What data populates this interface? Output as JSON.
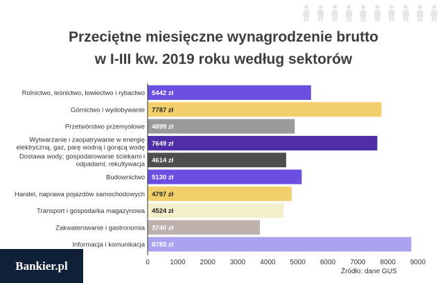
{
  "chart_data": {
    "type": "bar",
    "orientation": "horizontal",
    "title_line1": "Przeciętne miesięczne wynagrodzenie brutto",
    "title_line2": "w I-III kw. 2019 roku według sektorów",
    "categories": [
      [
        "Rolnictwo, leśnictwo, łowiectwo i rybactwo"
      ],
      [
        "Górnictwo i wydobywanie"
      ],
      [
        "Przetwórstwo przemysłowe"
      ],
      [
        "Wytwarzanie i zaopatrywanie w energię",
        "elektryczną, gaz, parę wodną i gorącą wodę"
      ],
      [
        "Dostawa wody; gospodarowanie ściekami i",
        "odpadami; rekultywacja"
      ],
      [
        "Budownictwo"
      ],
      [
        "Handel, naprawa pojazdów samochodowych"
      ],
      [
        "Transport i gospodarka magazynowa"
      ],
      [
        "Zakwaterowanie i gastronomia"
      ],
      [
        "Informacja i komunikacja"
      ]
    ],
    "values": [
      5442,
      7787,
      4899,
      7649,
      4614,
      5130,
      4797,
      4524,
      3740,
      8783
    ],
    "value_labels": [
      "5442 zł",
      "7787 zł",
      "4899 zł",
      "7649 zł",
      "4614 zł",
      "5130 zł",
      "4797 zł",
      "4524 zł",
      "3740 zł",
      "8783 zł"
    ],
    "colors": [
      "#6b4fe0",
      "#f2cf6b",
      "#9a9a9a",
      "#4f2ea8",
      "#4d4d4d",
      "#6b4fe0",
      "#f2cf6b",
      "#f3efcb",
      "#bdb0ad",
      "#aaa4f0"
    ],
    "label_colors": [
      "#ffffff",
      "#222222",
      "#ffffff",
      "#ffffff",
      "#ffffff",
      "#ffffff",
      "#222222",
      "#222222",
      "#ffffff",
      "#ffffff"
    ],
    "x_ticks": [
      0,
      1000,
      2000,
      3000,
      4000,
      5000,
      6000,
      7000,
      8000,
      9000
    ],
    "xlim": [
      0,
      9000
    ],
    "grid": false,
    "legend": "none"
  },
  "source": "Źródło: dane GUS",
  "logo_text": "Bankier.pl",
  "decoration": {
    "people_icon": "person-icon",
    "people_count": 10,
    "people_color": "#e6e6e6"
  }
}
